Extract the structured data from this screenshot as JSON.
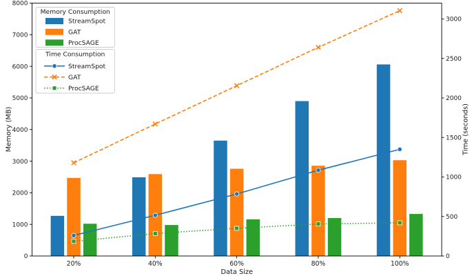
{
  "figure": {
    "xlabel": "Data Size",
    "ylabel_left": "Memory (MB)",
    "ylabel_right": "Time (seconds)",
    "background": "#ffffff",
    "text_color": "#1a1a1a",
    "spine_color": "#000000",
    "legend_border_color": "#cccccc"
  },
  "chart_data": [
    {
      "type": "bar",
      "title": "Memory Consumption",
      "categories": [
        "20%",
        "40%",
        "60%",
        "80%",
        "100%"
      ],
      "series": [
        {
          "name": "StreamSpot",
          "color": "#1f77b4",
          "values": [
            1270,
            2490,
            3650,
            4900,
            6060
          ]
        },
        {
          "name": "GAT",
          "color": "#ff7f0e",
          "values": [
            2470,
            2590,
            2760,
            2855,
            3030
          ]
        },
        {
          "name": "ProcSAGE",
          "color": "#2ca02c",
          "values": [
            1020,
            980,
            1160,
            1200,
            1330
          ]
        }
      ],
      "xlabel": "Data Size",
      "ylabel": "Memory (MB)",
      "ylim": [
        0,
        8000
      ],
      "yticks": [
        0,
        1000,
        2000,
        3000,
        4000,
        5000,
        6000,
        7000,
        8000
      ],
      "axis_side": "left",
      "legend_position": "upper left",
      "grid": false
    },
    {
      "type": "line",
      "title": "Time Consumption",
      "categories": [
        "20%",
        "40%",
        "60%",
        "80%",
        "100%"
      ],
      "series": [
        {
          "name": "StreamSpot",
          "color": "#1f77b4",
          "linestyle": "solid",
          "marker": "circle",
          "values": [
            260,
            515,
            785,
            1085,
            1350
          ]
        },
        {
          "name": "GAT",
          "color": "#ff7f0e",
          "linestyle": "dashed",
          "marker": "x",
          "values": [
            1180,
            1670,
            2155,
            2640,
            3105
          ]
        },
        {
          "name": "ProcSAGE",
          "color": "#2ca02c",
          "linestyle": "dotted",
          "marker": "square",
          "values": [
            185,
            285,
            350,
            405,
            420
          ]
        }
      ],
      "ylabel": "Time (seconds)",
      "ylim": [
        0,
        3200
      ],
      "yticks": [
        0,
        500,
        1000,
        1500,
        2000,
        2500,
        3000
      ],
      "axis_side": "right",
      "legend_position": "upper left",
      "grid": false
    }
  ]
}
